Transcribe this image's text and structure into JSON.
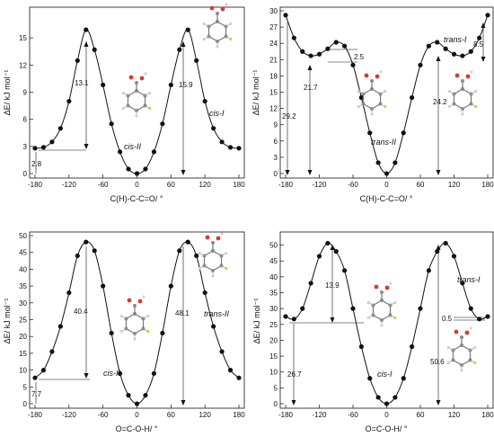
{
  "chart_data": [
    {
      "type": "line",
      "xlabel": "C(H)-C-C=O/ °",
      "ylabel": "ΔE/ kJ mol⁻¹",
      "xlim": [
        -180,
        180
      ],
      "ylim": [
        0,
        18
      ],
      "xticks": [
        "-180",
        "-120",
        "-60",
        "0",
        "60",
        "120",
        "180"
      ],
      "yticks": [
        "0",
        "3",
        "6",
        "9",
        "12",
        "15"
      ],
      "series": [
        {
          "x": [
            -180,
            -165,
            -150,
            -135,
            -120,
            -105,
            -90,
            -75,
            -60,
            -45,
            -30,
            -15,
            0,
            15,
            30,
            45,
            60,
            75,
            90,
            105,
            120,
            135,
            150,
            165,
            180
          ],
          "y": [
            2.8,
            2.9,
            3.5,
            5.0,
            8.0,
            12.5,
            15.9,
            13.7,
            9.8,
            5.5,
            2.4,
            0.5,
            0.0,
            0.5,
            2.4,
            5.5,
            9.8,
            13.7,
            15.9,
            12.5,
            8.0,
            5.0,
            3.5,
            2.9,
            2.8
          ]
        }
      ],
      "labels": [
        "cis-I",
        "cis-II"
      ],
      "annotations": [
        "13.1",
        "15.9",
        "2.8"
      ]
    },
    {
      "type": "line",
      "xlabel": "C(H)-C-C=O/ °",
      "ylabel": "ΔE/ kJ mol⁻¹",
      "xlim": [
        -180,
        180
      ],
      "ylim": [
        0,
        30
      ],
      "xticks": [
        "-180",
        "-120",
        "-60",
        "0",
        "60",
        "120",
        "180"
      ],
      "yticks": [
        "0",
        "3",
        "6",
        "9",
        "12",
        "15",
        "18",
        "21",
        "24",
        "27",
        "30"
      ],
      "series": [
        {
          "x": [
            -180,
            -165,
            -150,
            -135,
            -120,
            -105,
            -90,
            -75,
            -60,
            -45,
            -30,
            -15,
            0,
            15,
            30,
            45,
            60,
            75,
            90,
            105,
            120,
            135,
            150,
            165,
            180
          ],
          "y": [
            29.2,
            25.0,
            22.5,
            21.7,
            22.0,
            23.0,
            24.2,
            23.5,
            20.0,
            14.0,
            7.5,
            2.0,
            0.0,
            2.0,
            7.5,
            14.0,
            20.0,
            23.5,
            24.2,
            23.0,
            22.0,
            21.7,
            22.5,
            25.0,
            29.2
          ]
        }
      ],
      "labels": [
        "trans-I",
        "trans-II"
      ],
      "annotations": [
        "29.2",
        "21.7",
        "2.5",
        "24.2",
        "8.5"
      ]
    },
    {
      "type": "line",
      "xlabel": "O=C-O-H/ °",
      "ylabel": "ΔE/ kJ mol⁻¹",
      "xlim": [
        -180,
        180
      ],
      "ylim": [
        0,
        50
      ],
      "xticks": [
        "-180",
        "-120",
        "-60",
        "0",
        "60",
        "120",
        "180"
      ],
      "yticks": [
        "0",
        "5",
        "10",
        "15",
        "20",
        "25",
        "30",
        "35",
        "40",
        "45",
        "50"
      ],
      "series": [
        {
          "x": [
            -180,
            -165,
            -150,
            -135,
            -120,
            -105,
            -90,
            -75,
            -60,
            -45,
            -30,
            -15,
            0,
            15,
            30,
            45,
            60,
            75,
            90,
            105,
            120,
            135,
            150,
            165,
            180
          ],
          "y": [
            7.7,
            10.0,
            15.5,
            23.0,
            33.0,
            44.0,
            48.1,
            45.5,
            35.0,
            21.0,
            9.0,
            2.5,
            0.0,
            2.5,
            9.0,
            21.0,
            35.0,
            45.5,
            48.1,
            44.0,
            33.0,
            23.0,
            15.5,
            10.0,
            7.7
          ]
        }
      ],
      "labels": [
        "cis-II",
        "trans-II"
      ],
      "annotations": [
        "40.4",
        "48.1",
        "7.7"
      ]
    },
    {
      "type": "line",
      "xlabel": "O=C-O-H/ °",
      "ylabel": "ΔE/ kJ mol⁻¹",
      "xlim": [
        -180,
        180
      ],
      "ylim": [
        0,
        53
      ],
      "xticks": [
        "-180",
        "-120",
        "-60",
        "0",
        "60",
        "120",
        "180"
      ],
      "yticks": [
        "0",
        "5",
        "10",
        "15",
        "20",
        "25",
        "30",
        "35",
        "40",
        "45",
        "50"
      ],
      "series": [
        {
          "x": [
            -180,
            -165,
            -150,
            -135,
            -120,
            -105,
            -90,
            -75,
            -60,
            -45,
            -30,
            -15,
            0,
            15,
            30,
            45,
            60,
            75,
            90,
            105,
            120,
            135,
            150,
            165,
            180
          ],
          "y": [
            27.5,
            26.7,
            30.0,
            38.0,
            46.5,
            50.6,
            48.0,
            42.0,
            30.0,
            18.0,
            8.0,
            2.0,
            0.0,
            2.0,
            8.0,
            18.0,
            30.0,
            42.0,
            48.0,
            50.6,
            46.5,
            38.0,
            30.0,
            26.7,
            27.5
          ]
        }
      ],
      "labels": [
        "trans-I",
        "cis-I"
      ],
      "annotations": [
        "13.9",
        "26.7",
        "0.5",
        "50.6"
      ]
    }
  ]
}
